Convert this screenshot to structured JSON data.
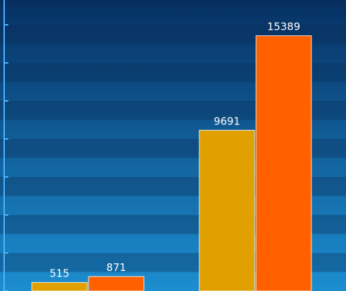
{
  "chart_data": {
    "type": "bar",
    "categories": [
      "",
      ""
    ],
    "series": [
      {
        "values": [
          515,
          9691
        ],
        "color": "#e0a000"
      },
      {
        "values": [
          871,
          15389
        ],
        "color": "#ff6000"
      }
    ],
    "title": "",
    "xlabel": "",
    "ylabel": "",
    "ylim": [
      0,
      16000
    ],
    "grid": true,
    "legend": "none"
  },
  "colors": {
    "background_top": "#063062",
    "background_bottom": "#1c8ed0",
    "grid_stripe": "#0b2e5a",
    "axis": "#4fb3ff"
  }
}
